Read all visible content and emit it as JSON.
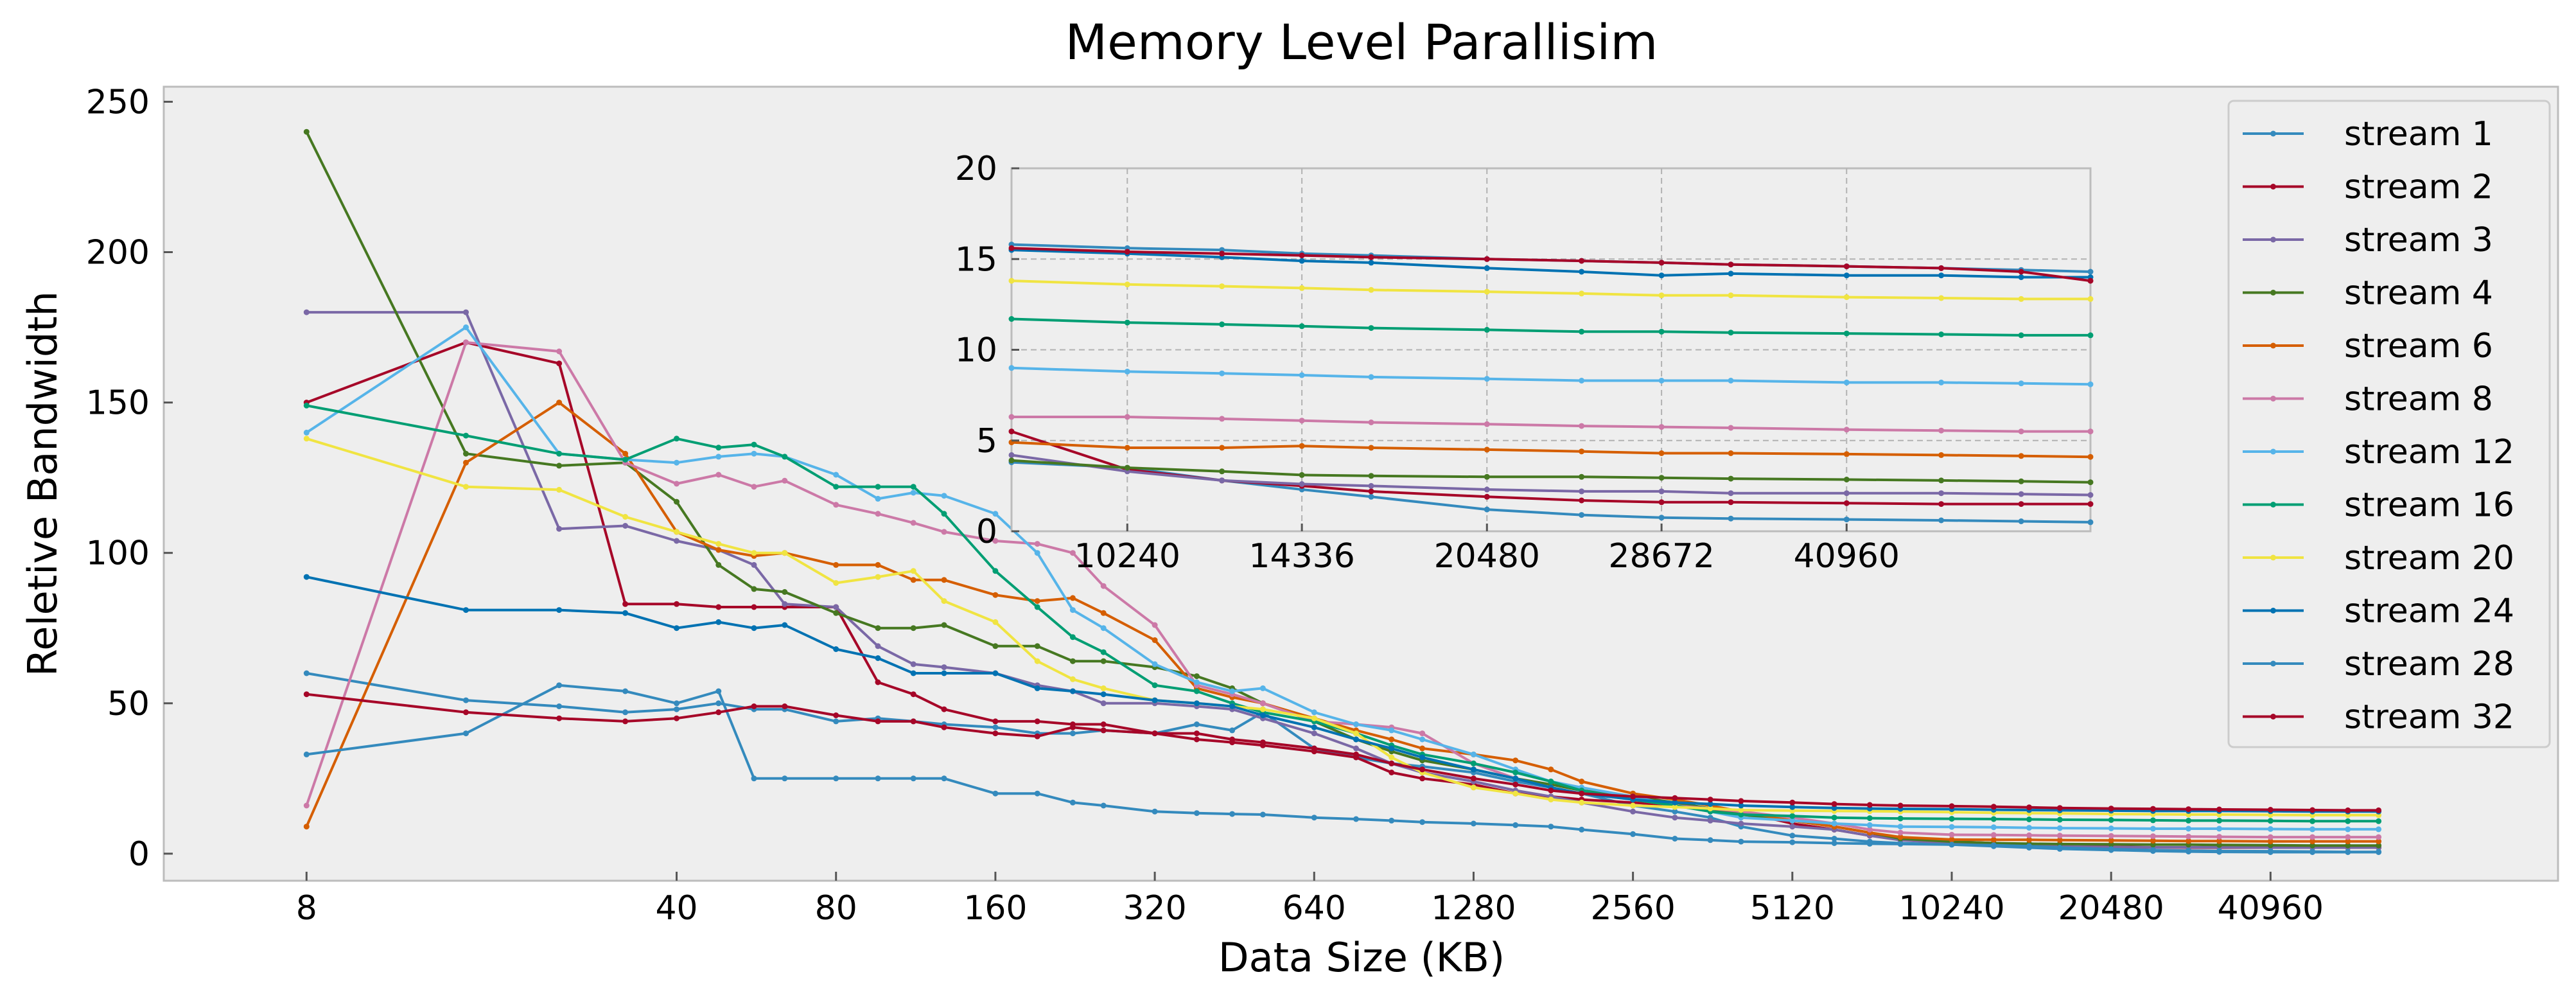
{
  "chart_data": {
    "type": "line",
    "title": "Memory Level Parallisim",
    "xlabel": "Data Size (KB)",
    "ylabel": "Reletive Bandwidth",
    "ylim": [
      -9,
      255
    ],
    "yticks": [
      0,
      50,
      100,
      150,
      200,
      250
    ],
    "x": [
      8,
      16,
      24,
      32,
      40,
      48,
      56,
      64,
      80,
      96,
      112,
      128,
      160,
      192,
      224,
      256,
      320,
      384,
      448,
      512,
      640,
      768,
      896,
      1024,
      1280,
      1536,
      1792,
      2048,
      2560,
      3072,
      3584,
      4096,
      5120,
      6144,
      7168,
      8192,
      10240,
      12288,
      14336,
      16384,
      20480,
      24576,
      28672,
      32768,
      40960,
      49152,
      57344,
      65536
    ],
    "xticks": [
      {
        "value": 8,
        "label": "8"
      },
      {
        "value": 40,
        "label": "40"
      },
      {
        "value": 80,
        "label": "80"
      },
      {
        "value": 160,
        "label": "160"
      },
      {
        "value": 320,
        "label": "320"
      },
      {
        "value": 640,
        "label": "640"
      },
      {
        "value": 1280,
        "label": "1280"
      },
      {
        "value": 2560,
        "label": "2560"
      },
      {
        "value": 5120,
        "label": "5120"
      },
      {
        "value": 10240,
        "label": "10240"
      },
      {
        "value": 20480,
        "label": "20480"
      },
      {
        "value": 40960,
        "label": "40960"
      }
    ],
    "xlim": [
      4.3,
      143000
    ],
    "x_scale": "log",
    "grid": false,
    "legend_position": "right",
    "series": [
      {
        "name": "stream 1",
        "color": "#348ABD",
        "values": [
          60,
          51,
          49,
          47,
          48,
          50,
          48,
          48,
          44,
          45,
          44,
          43,
          42,
          40,
          40,
          41,
          40,
          43,
          41,
          47,
          35,
          32,
          30,
          29,
          27,
          24,
          22,
          20,
          16,
          14,
          12,
          9,
          6,
          5,
          4,
          3.5,
          3,
          2.5,
          2,
          1.6,
          1.2,
          0.9,
          0.7,
          0.6,
          0.5,
          0.5,
          0.5,
          0.5
        ]
      },
      {
        "name": "stream 2",
        "color": "#A60628",
        "values": [
          150,
          170,
          163,
          83,
          83,
          82,
          82,
          82,
          82,
          57,
          53,
          48,
          44,
          44,
          43,
          43,
          40,
          38,
          37,
          36,
          34,
          32,
          27,
          25,
          23,
          20,
          19,
          18,
          17,
          16,
          15,
          14,
          10,
          8,
          6,
          5,
          4,
          3.5,
          3,
          2.7,
          2.3,
          2.1,
          2,
          2,
          2,
          2,
          2,
          2
        ]
      },
      {
        "name": "stream 3",
        "color": "#7A68A6",
        "values": [
          180,
          180,
          108,
          109,
          104,
          101,
          96,
          83,
          82,
          69,
          63,
          62,
          60,
          56,
          54,
          50,
          50,
          49,
          48,
          45,
          40,
          35,
          30,
          27,
          24,
          21,
          19,
          17,
          14,
          12,
          11,
          10,
          9,
          8,
          6,
          4.5,
          3.5,
          3,
          2.6,
          2.4,
          2.2,
          2.1,
          2.1,
          2.1,
          2,
          2,
          2,
          2
        ]
      },
      {
        "name": "stream 4",
        "color": "#467821",
        "values": [
          240,
          133,
          129,
          130,
          117,
          96,
          88,
          87,
          80,
          75,
          75,
          76,
          69,
          69,
          64,
          64,
          62,
          59,
          55,
          50,
          44,
          38,
          34,
          31,
          28,
          25,
          23,
          21,
          19,
          17,
          15,
          13,
          11,
          9,
          7,
          5,
          4,
          3.5,
          3.3,
          3.2,
          3.1,
          3,
          3,
          2.9,
          2.8,
          2.7,
          2.7,
          2.7
        ]
      },
      {
        "name": "stream 6",
        "color": "#D55E00",
        "values": [
          9,
          130,
          150,
          133,
          107,
          101,
          99,
          100,
          96,
          96,
          91,
          91,
          86,
          84,
          85,
          80,
          71,
          55,
          52,
          50,
          45,
          41,
          38,
          35,
          33,
          31,
          28,
          24,
          20,
          18,
          16,
          14,
          11,
          9,
          7,
          5.5,
          4.7,
          4.6,
          4.6,
          4.5,
          4.4,
          4.3,
          4.2,
          4.2,
          4.1,
          4.1,
          4.1,
          4.1
        ]
      },
      {
        "name": "stream 8",
        "color": "#CC79A7",
        "values": [
          16,
          170,
          167,
          130,
          123,
          126,
          122,
          124,
          116,
          113,
          110,
          107,
          104,
          103,
          100,
          89,
          76,
          56,
          53,
          50,
          44,
          43,
          42,
          40,
          30,
          25,
          22,
          20,
          18,
          16,
          15,
          14,
          12,
          10,
          8,
          7,
          6.3,
          6.2,
          6.1,
          6,
          5.9,
          5.8,
          5.7,
          5.6,
          5.5,
          5.5,
          5.5,
          5.5
        ]
      },
      {
        "name": "stream 12",
        "color": "#56B4E9",
        "values": [
          140,
          175,
          133,
          131,
          130,
          132,
          133,
          132,
          126,
          118,
          120,
          119,
          113,
          100,
          81,
          75,
          63,
          57,
          54,
          55,
          47,
          43,
          41,
          38,
          33,
          28,
          24,
          22,
          19,
          16,
          14,
          12,
          11,
          10,
          9.5,
          9,
          8.9,
          8.8,
          8.6,
          8.5,
          8.4,
          8.3,
          8.3,
          8.3,
          8.2,
          8.1,
          8.1,
          8.1
        ]
      },
      {
        "name": "stream 16",
        "color": "#009E73",
        "values": [
          149,
          139,
          133,
          131,
          138,
          135,
          136,
          132,
          122,
          122,
          122,
          113,
          94,
          82,
          72,
          67,
          56,
          54,
          50,
          47,
          44,
          40,
          36,
          33,
          30,
          27,
          24,
          21,
          18,
          16,
          14,
          13,
          12.5,
          12,
          11.8,
          11.7,
          11.6,
          11.5,
          11.4,
          11.3,
          11.2,
          11.1,
          11,
          11,
          10.9,
          10.8,
          10.8,
          10.8
        ]
      },
      {
        "name": "stream 20",
        "color": "#F0E442",
        "values": [
          138,
          122,
          121,
          112,
          107,
          103,
          100,
          100,
          90,
          92,
          94,
          84,
          77,
          64,
          58,
          55,
          51,
          50,
          49,
          48,
          45,
          40,
          32,
          27,
          22,
          20,
          18,
          17,
          16,
          15.5,
          15,
          14.5,
          14.3,
          14.2,
          14.1,
          14,
          13.8,
          13.6,
          13.5,
          13.4,
          13.2,
          13.1,
          13,
          13,
          12.9,
          12.8,
          12.8,
          12.8
        ]
      },
      {
        "name": "stream 24",
        "color": "#0072B2",
        "values": [
          92,
          81,
          81,
          80,
          75,
          77,
          75,
          76,
          68,
          65,
          60,
          60,
          60,
          55,
          54,
          53,
          51,
          50,
          49,
          46,
          42,
          38,
          35,
          32,
          28,
          25,
          22,
          20,
          18,
          17,
          16.5,
          16,
          15.5,
          15.2,
          15,
          14.9,
          14.8,
          14.6,
          14.5,
          14.4,
          14.3,
          14.2,
          14.2,
          14.2,
          14.1,
          14,
          14,
          14
        ]
      },
      {
        "name": "stream 28",
        "color": "#348ABD",
        "values": [
          33,
          40,
          56,
          54,
          50,
          54,
          25,
          25,
          25,
          25,
          25,
          25,
          20,
          20,
          17,
          16,
          14,
          13.5,
          13.2,
          13,
          12,
          11.5,
          11,
          10.5,
          10,
          9.5,
          9,
          8,
          6.5,
          5,
          4.5,
          4,
          3.8,
          3.5,
          3.3,
          3.2,
          3,
          2.8,
          2.5,
          2,
          1.5,
          1.2,
          1,
          0.9,
          0.8,
          0.7,
          0.6,
          0.6
        ]
      },
      {
        "name": "stream 32",
        "color": "#A60628",
        "values": [
          53,
          47,
          45,
          44,
          45,
          47,
          49,
          49,
          46,
          44,
          44,
          42,
          40,
          39,
          42,
          41,
          40,
          40,
          38,
          37,
          35,
          33,
          30,
          28,
          25,
          23,
          21,
          20,
          19,
          18.5,
          18,
          17.5,
          17,
          16.5,
          16.2,
          16,
          15.8,
          15.6,
          15.4,
          15.2,
          15,
          14.9,
          14.8,
          14.7,
          14.6,
          14.5,
          14.4,
          14.4
        ]
      }
    ],
    "inset": {
      "xticks": [
        {
          "value": 10240,
          "label": "10240"
        },
        {
          "value": 14336,
          "label": "14336"
        },
        {
          "value": 20480,
          "label": "20480"
        },
        {
          "value": 28672,
          "label": "28672"
        },
        {
          "value": 40960,
          "label": "40960"
        }
      ],
      "yticks": [
        0,
        5,
        10,
        15,
        20
      ],
      "ylim": [
        0,
        20
      ],
      "xlim": [
        8192,
        65536
      ],
      "x_scale": "log",
      "grid": true,
      "x": [
        8192,
        10240,
        12288,
        14336,
        16384,
        20480,
        24576,
        28672,
        32768,
        40960,
        49152,
        57344,
        65536
      ],
      "series": [
        {
          "name": "stream 1",
          "color": "#348ABD",
          "values": [
            3.8,
            3.5,
            2.8,
            2.3,
            1.9,
            1.2,
            0.9,
            0.75,
            0.7,
            0.65,
            0.6,
            0.55,
            0.5
          ]
        },
        {
          "name": "stream 2",
          "color": "#A60628",
          "values": [
            5.5,
            3.4,
            2.8,
            2.5,
            2.2,
            1.9,
            1.7,
            1.6,
            1.6,
            1.55,
            1.5,
            1.5,
            1.5
          ]
        },
        {
          "name": "stream 3",
          "color": "#7A68A6",
          "values": [
            4.2,
            3.3,
            2.8,
            2.6,
            2.5,
            2.3,
            2.2,
            2.2,
            2.1,
            2.1,
            2.1,
            2.05,
            2
          ]
        },
        {
          "name": "stream 4",
          "color": "#467821",
          "values": [
            3.9,
            3.5,
            3.3,
            3.1,
            3.05,
            3,
            3,
            2.95,
            2.9,
            2.85,
            2.8,
            2.75,
            2.7
          ]
        },
        {
          "name": "stream 6",
          "color": "#D55E00",
          "values": [
            4.9,
            4.6,
            4.6,
            4.7,
            4.6,
            4.5,
            4.4,
            4.3,
            4.3,
            4.25,
            4.2,
            4.15,
            4.1
          ]
        },
        {
          "name": "stream 8",
          "color": "#CC79A7",
          "values": [
            6.3,
            6.3,
            6.2,
            6.1,
            6,
            5.9,
            5.8,
            5.75,
            5.7,
            5.6,
            5.55,
            5.5,
            5.5
          ]
        },
        {
          "name": "stream 12",
          "color": "#56B4E9",
          "values": [
            9,
            8.8,
            8.7,
            8.6,
            8.5,
            8.4,
            8.3,
            8.3,
            8.3,
            8.2,
            8.2,
            8.15,
            8.1
          ]
        },
        {
          "name": "stream 16",
          "color": "#009E73",
          "values": [
            11.7,
            11.5,
            11.4,
            11.3,
            11.2,
            11.1,
            11,
            11,
            10.95,
            10.9,
            10.85,
            10.8,
            10.8
          ]
        },
        {
          "name": "stream 20",
          "color": "#F0E442",
          "values": [
            13.8,
            13.6,
            13.5,
            13.4,
            13.3,
            13.2,
            13.1,
            13,
            13,
            12.9,
            12.85,
            12.8,
            12.8
          ]
        },
        {
          "name": "stream 24",
          "color": "#0072B2",
          "values": [
            15.5,
            15.3,
            15.1,
            14.9,
            14.8,
            14.5,
            14.3,
            14.1,
            14.2,
            14.1,
            14.1,
            14,
            14
          ]
        },
        {
          "name": "stream 28",
          "color": "#348ABD",
          "values": [
            15.8,
            15.6,
            15.5,
            15.3,
            15.2,
            15,
            14.9,
            14.8,
            14.7,
            14.6,
            14.5,
            14.4,
            14.3
          ]
        },
        {
          "name": "stream 32",
          "color": "#A60628",
          "values": [
            15.6,
            15.4,
            15.3,
            15.2,
            15.1,
            15,
            14.9,
            14.8,
            14.7,
            14.6,
            14.5,
            14.3,
            13.8
          ]
        }
      ]
    }
  }
}
